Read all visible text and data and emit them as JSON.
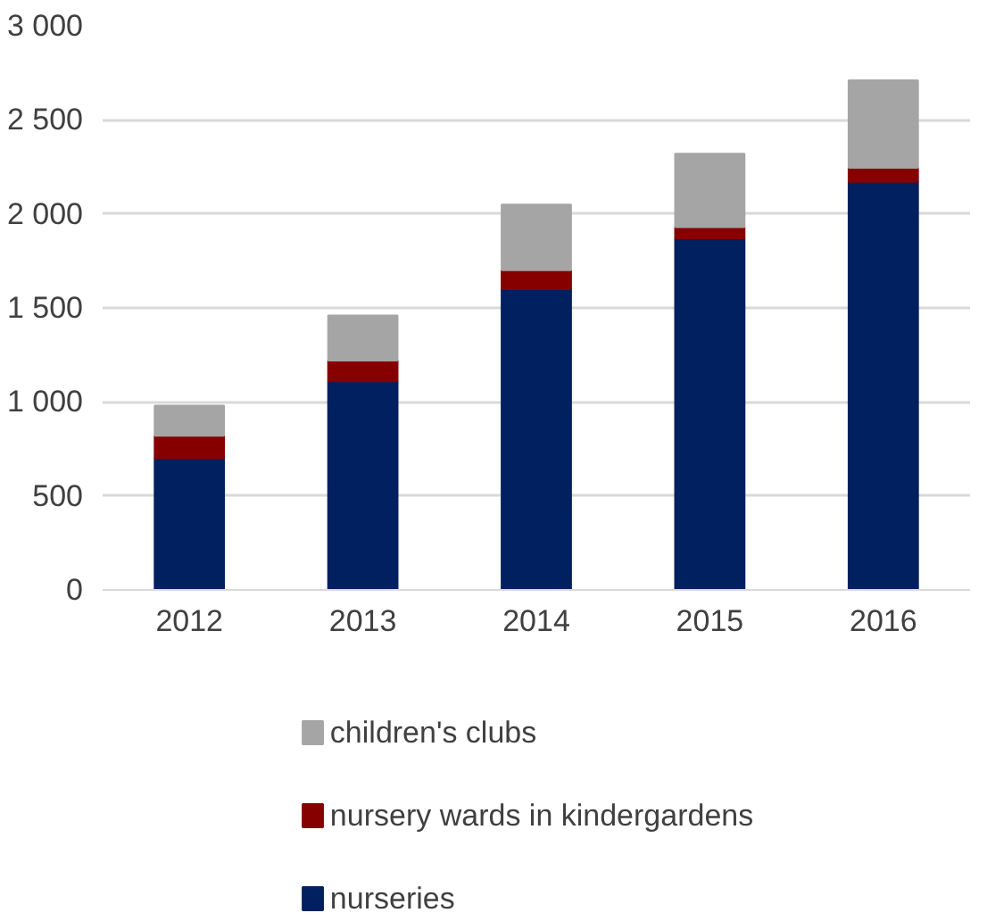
{
  "chart_data": {
    "type": "bar",
    "stacked": true,
    "categories": [
      "2012",
      "2013",
      "2014",
      "2015",
      "2016"
    ],
    "series": [
      {
        "name": "nurseries",
        "color": "#002060",
        "values": [
          700,
          1110,
          1600,
          1870,
          2170
        ]
      },
      {
        "name": "nursery wards in kindergardens",
        "color": "#860000",
        "values": [
          120,
          110,
          100,
          60,
          75
        ]
      },
      {
        "name": "children's clubs",
        "color": "#a5a5a5",
        "values": [
          160,
          240,
          350,
          390,
          465
        ]
      }
    ],
    "ylim": [
      0,
      3000
    ],
    "yticks": [
      {
        "value": 0,
        "label": "0"
      },
      {
        "value": 500,
        "label": "500"
      },
      {
        "value": 1000,
        "label": "1 000"
      },
      {
        "value": 1500,
        "label": "1 500"
      },
      {
        "value": 2000,
        "label": "2 000"
      },
      {
        "value": 2500,
        "label": "2 500"
      },
      {
        "value": 3000,
        "label": "3 000"
      }
    ],
    "grid": "y",
    "legend": "bottom"
  }
}
